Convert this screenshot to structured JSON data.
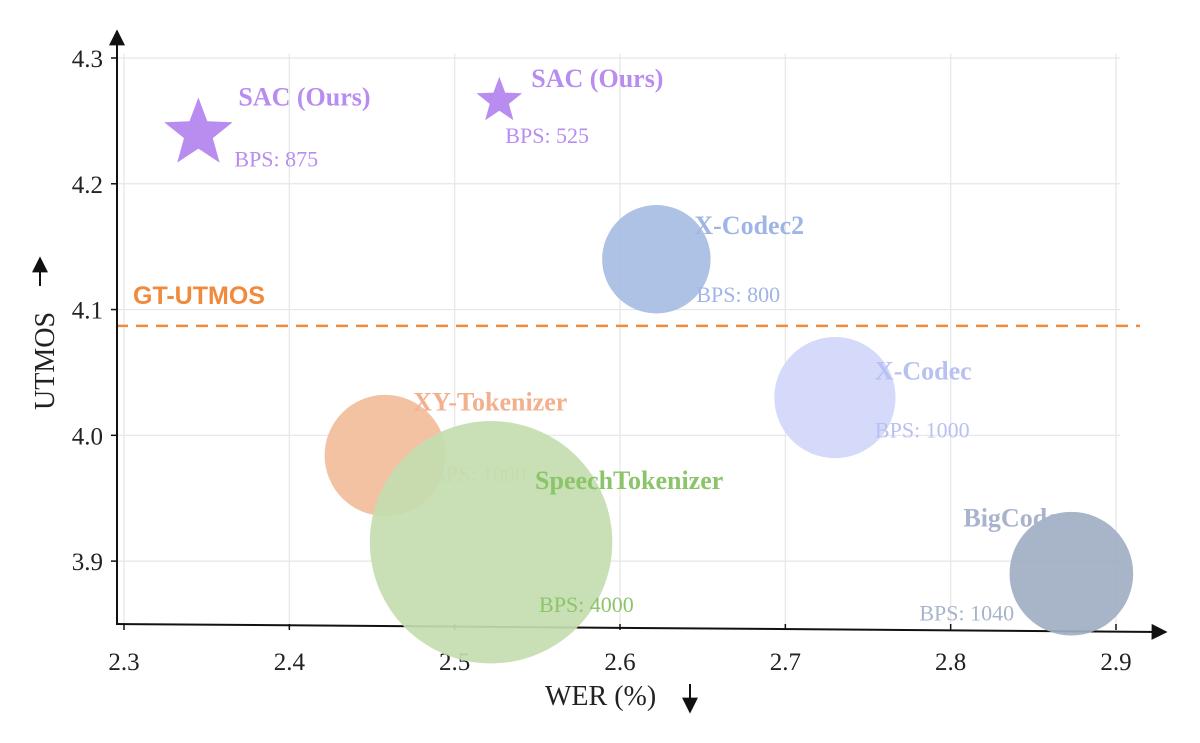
{
  "chart_data": {
    "type": "scatter",
    "title": "",
    "xlabel": "WER (%)",
    "ylabel": "UTMOS",
    "xlim": [
      2.3,
      2.9
    ],
    "ylim": [
      3.85,
      4.3
    ],
    "xticks": [
      "2.3",
      "2.4",
      "2.5",
      "2.6",
      "2.7",
      "2.8",
      "2.9"
    ],
    "yticks": [
      "3.9",
      "4.0",
      "4.1",
      "4.2",
      "4.3"
    ],
    "grid": true,
    "reference_line": {
      "label": "GT-UTMOS",
      "y": 4.087,
      "color": "#f08a3c",
      "style": "dashed"
    },
    "points": [
      {
        "name": "SAC (Ours)",
        "bps_label": "BPS: 875",
        "bps": 875,
        "x": 2.345,
        "y": 4.24,
        "marker": "star",
        "color": "#b98cf0",
        "text_color": "#b98cf0"
      },
      {
        "name": "SAC (Ours)",
        "bps_label": "BPS: 525",
        "bps": 525,
        "x": 2.527,
        "y": 4.266,
        "marker": "star",
        "color": "#b98cf0",
        "text_color": "#b98cf0"
      },
      {
        "name": "X-Codec2",
        "bps_label": "BPS: 800",
        "bps": 800,
        "x": 2.622,
        "y": 4.14,
        "marker": "circle",
        "color": "#a7bde3",
        "text_color": "#9fb5e6"
      },
      {
        "name": "X-Codec",
        "bps_label": "BPS: 1000",
        "bps": 1000,
        "x": 2.73,
        "y": 4.03,
        "marker": "circle",
        "color": "#d3d7fa",
        "text_color": "#b9c0f2"
      },
      {
        "name": "XY-Tokenizer",
        "bps_label": "BPS: 1000",
        "bps": 1000,
        "x": 2.458,
        "y": 3.984,
        "marker": "circle",
        "color": "#f2bd9b",
        "text_color": "#f2b08c"
      },
      {
        "name": "SpeechTokenizer",
        "bps_label": "BPS: 4000",
        "bps": 4000,
        "x": 2.522,
        "y": 3.915,
        "marker": "circle",
        "color": "#c4ddb0",
        "text_color": "#8cc46a"
      },
      {
        "name": "BigCodec",
        "bps_label": "BPS: 1040",
        "bps": 1040,
        "x": 2.873,
        "y": 3.89,
        "marker": "circle",
        "color": "#a1aec2",
        "text_color": "#a8b3cc"
      }
    ]
  }
}
